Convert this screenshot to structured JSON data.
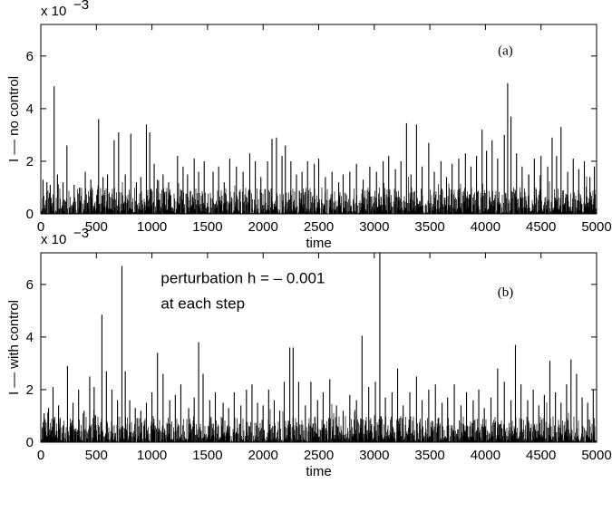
{
  "chart_data": [
    {
      "type": "line",
      "panel_label": "(a)",
      "xlabel": "time",
      "ylabel": "I –– no control",
      "scale_note": "x 10",
      "scale_exp": "−3",
      "xlim": [
        0,
        5000
      ],
      "ylim": [
        0,
        7.2
      ],
      "xticks": [
        0,
        500,
        1000,
        1500,
        2000,
        2500,
        3000,
        3500,
        4000,
        4500,
        5000
      ],
      "yticks": [
        0,
        2,
        4,
        6
      ],
      "baseline_max": 1.0,
      "seed": 11,
      "spikes": [
        [
          20,
          1.3
        ],
        [
          55,
          1.2
        ],
        [
          85,
          1.1
        ],
        [
          120,
          4.85
        ],
        [
          150,
          1.5
        ],
        [
          200,
          1.2
        ],
        [
          235,
          2.6
        ],
        [
          300,
          1.1
        ],
        [
          350,
          1.0
        ],
        [
          400,
          1.6
        ],
        [
          450,
          1.3
        ],
        [
          520,
          3.6
        ],
        [
          560,
          1.4
        ],
        [
          600,
          1.5
        ],
        [
          660,
          2.8
        ],
        [
          700,
          3.1
        ],
        [
          760,
          1.5
        ],
        [
          810,
          3.05
        ],
        [
          860,
          1.2
        ],
        [
          900,
          1.4
        ],
        [
          950,
          3.4
        ],
        [
          980,
          3.1
        ],
        [
          1020,
          1.9
        ],
        [
          1050,
          1.3
        ],
        [
          1100,
          1.5
        ],
        [
          1150,
          1.2
        ],
        [
          1230,
          2.2
        ],
        [
          1280,
          1.8
        ],
        [
          1320,
          1.5
        ],
        [
          1380,
          2.1
        ],
        [
          1420,
          1.6
        ],
        [
          1470,
          2.0
        ],
        [
          1550,
          1.6
        ],
        [
          1600,
          1.8
        ],
        [
          1650,
          1.2
        ],
        [
          1700,
          2.1
        ],
        [
          1760,
          1.8
        ],
        [
          1820,
          1.6
        ],
        [
          1880,
          2.3
        ],
        [
          1930,
          2.0
        ],
        [
          1980,
          1.4
        ],
        [
          2040,
          2.0
        ],
        [
          2080,
          2.85
        ],
        [
          2120,
          2.9
        ],
        [
          2170,
          2.2
        ],
        [
          2200,
          2.6
        ],
        [
          2250,
          2.0
        ],
        [
          2300,
          1.5
        ],
        [
          2350,
          1.6
        ],
        [
          2400,
          2.0
        ],
        [
          2460,
          1.9
        ],
        [
          2500,
          2.1
        ],
        [
          2560,
          1.4
        ],
        [
          2620,
          1.6
        ],
        [
          2680,
          1.2
        ],
        [
          2720,
          1.5
        ],
        [
          2780,
          1.6
        ],
        [
          2840,
          1.9
        ],
        [
          2900,
          1.3
        ],
        [
          2960,
          1.8
        ],
        [
          3020,
          1.6
        ],
        [
          3080,
          2.0
        ],
        [
          3130,
          2.2
        ],
        [
          3190,
          1.7
        ],
        [
          3240,
          2.0
        ],
        [
          3290,
          3.45
        ],
        [
          3330,
          1.5
        ],
        [
          3380,
          3.4
        ],
        [
          3430,
          1.8
        ],
        [
          3490,
          2.7
        ],
        [
          3540,
          1.6
        ],
        [
          3600,
          2.0
        ],
        [
          3650,
          1.4
        ],
        [
          3700,
          1.9
        ],
        [
          3760,
          2.1
        ],
        [
          3820,
          2.3
        ],
        [
          3870,
          1.8
        ],
        [
          3920,
          2.2
        ],
        [
          3970,
          3.2
        ],
        [
          4010,
          2.4
        ],
        [
          4060,
          2.8
        ],
        [
          4110,
          2.1
        ],
        [
          4170,
          3.0
        ],
        [
          4200,
          4.97
        ],
        [
          4230,
          3.7
        ],
        [
          4280,
          2.3
        ],
        [
          4330,
          1.8
        ],
        [
          4390,
          1.5
        ],
        [
          4440,
          2.1
        ],
        [
          4500,
          2.2
        ],
        [
          4560,
          1.8
        ],
        [
          4600,
          2.9
        ],
        [
          4640,
          2.2
        ],
        [
          4680,
          3.3
        ],
        [
          4740,
          1.6
        ],
        [
          4790,
          2.1
        ],
        [
          4840,
          1.7
        ],
        [
          4890,
          2.0
        ],
        [
          4940,
          1.4
        ],
        [
          4980,
          1.8
        ]
      ]
    },
    {
      "type": "line",
      "panel_label": "(b)",
      "xlabel": "time",
      "ylabel": "I –– with control",
      "scale_note": "x 10",
      "scale_exp": "−3",
      "annotation_lines": [
        "perturbation h = – 0.001",
        "at each step"
      ],
      "xlim": [
        0,
        5000
      ],
      "ylim": [
        0,
        7.2
      ],
      "xticks": [
        0,
        500,
        1000,
        1500,
        2000,
        2500,
        3000,
        3500,
        4000,
        4500,
        5000
      ],
      "yticks": [
        0,
        2,
        4,
        6
      ],
      "baseline_max": 1.0,
      "seed": 29,
      "spikes": [
        [
          30,
          1.1
        ],
        [
          70,
          1.3
        ],
        [
          110,
          2.1
        ],
        [
          160,
          1.4
        ],
        [
          240,
          2.9
        ],
        [
          290,
          1.5
        ],
        [
          340,
          2.0
        ],
        [
          390,
          1.2
        ],
        [
          440,
          2.5
        ],
        [
          480,
          2.1
        ],
        [
          550,
          4.85
        ],
        [
          590,
          2.7
        ],
        [
          640,
          2.0
        ],
        [
          690,
          1.6
        ],
        [
          730,
          6.7
        ],
        [
          760,
          2.7
        ],
        [
          800,
          1.6
        ],
        [
          850,
          1.3
        ],
        [
          900,
          1.2
        ],
        [
          950,
          1.5
        ],
        [
          1000,
          1.9
        ],
        [
          1050,
          3.4
        ],
        [
          1100,
          2.6
        ],
        [
          1160,
          1.6
        ],
        [
          1210,
          1.8
        ],
        [
          1260,
          2.2
        ],
        [
          1330,
          1.3
        ],
        [
          1380,
          1.7
        ],
        [
          1420,
          3.8
        ],
        [
          1460,
          2.6
        ],
        [
          1520,
          1.6
        ],
        [
          1570,
          1.9
        ],
        [
          1640,
          1.5
        ],
        [
          1690,
          1.3
        ],
        [
          1740,
          1.9
        ],
        [
          1800,
          1.4
        ],
        [
          1850,
          2.0
        ],
        [
          1900,
          2.2
        ],
        [
          1950,
          1.5
        ],
        [
          2000,
          1.4
        ],
        [
          2050,
          2.0
        ],
        [
          2100,
          1.6
        ],
        [
          2150,
          1.2
        ],
        [
          2190,
          2.3
        ],
        [
          2240,
          3.6
        ],
        [
          2270,
          3.6
        ],
        [
          2320,
          2.3
        ],
        [
          2380,
          1.4
        ],
        [
          2430,
          2.3
        ],
        [
          2490,
          1.6
        ],
        [
          2540,
          1.9
        ],
        [
          2600,
          2.4
        ],
        [
          2660,
          1.4
        ],
        [
          2720,
          1.2
        ],
        [
          2780,
          1.8
        ],
        [
          2840,
          1.6
        ],
        [
          2890,
          4.05
        ],
        [
          2950,
          2.1
        ],
        [
          3010,
          2.3
        ],
        [
          3050,
          7.2
        ],
        [
          3100,
          1.7
        ],
        [
          3160,
          1.9
        ],
        [
          3210,
          2.8
        ],
        [
          3260,
          1.4
        ],
        [
          3320,
          1.9
        ],
        [
          3380,
          2.5
        ],
        [
          3430,
          1.6
        ],
        [
          3490,
          2.0
        ],
        [
          3550,
          2.2
        ],
        [
          3610,
          1.5
        ],
        [
          3660,
          1.7
        ],
        [
          3720,
          2.2
        ],
        [
          3780,
          1.4
        ],
        [
          3830,
          1.9
        ],
        [
          3890,
          1.6
        ],
        [
          3940,
          2.0
        ],
        [
          3990,
          1.3
        ],
        [
          4050,
          1.7
        ],
        [
          4110,
          2.8
        ],
        [
          4170,
          2.3
        ],
        [
          4230,
          1.6
        ],
        [
          4270,
          3.7
        ],
        [
          4320,
          2.2
        ],
        [
          4380,
          1.6
        ],
        [
          4430,
          2.0
        ],
        [
          4480,
          1.4
        ],
        [
          4530,
          1.8
        ],
        [
          4580,
          3.1
        ],
        [
          4630,
          1.9
        ],
        [
          4680,
          1.5
        ],
        [
          4730,
          2.2
        ],
        [
          4770,
          3.15
        ],
        [
          4820,
          2.6
        ],
        [
          4870,
          1.7
        ],
        [
          4920,
          1.5
        ],
        [
          4970,
          2.0
        ]
      ]
    }
  ]
}
